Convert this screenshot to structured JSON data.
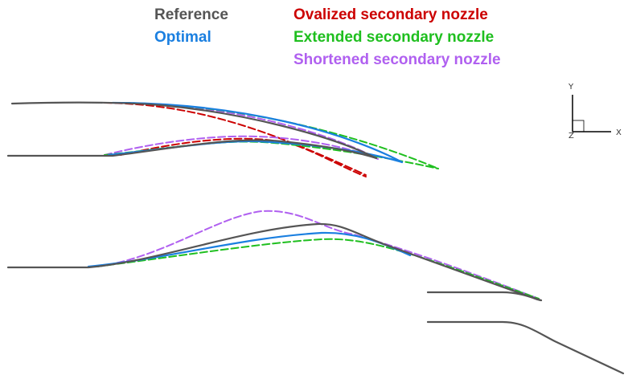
{
  "legend": {
    "reference": {
      "label": "Reference",
      "color": "#555555"
    },
    "optimal": {
      "label": "Optimal",
      "color": "#1a7fe0"
    },
    "ovalized": {
      "label": "Ovalized secondary nozzle",
      "color": "#cc0000"
    },
    "extended": {
      "label": "Extended secondary nozzle",
      "color": "#1fbf1f"
    },
    "shortened": {
      "label": "Shortened secondary nozzle",
      "color": "#b060f0"
    }
  },
  "axis_triad": {
    "x_label": "X",
    "y_label": "Y",
    "z_label": "Z"
  }
}
